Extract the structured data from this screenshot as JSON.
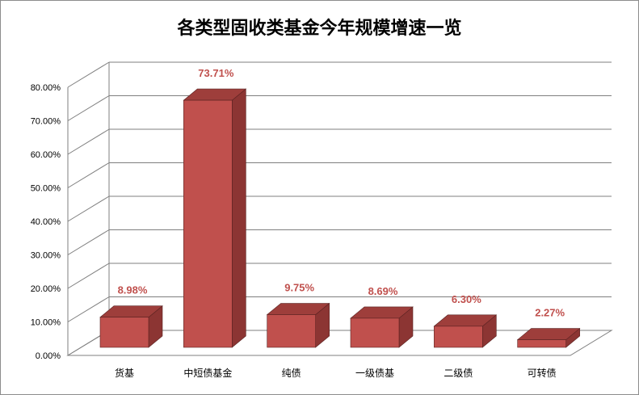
{
  "chart_data": {
    "type": "bar",
    "title": "各类型固收类基金今年规模增速一览",
    "categories": [
      "货基",
      "中短债基金",
      "纯债",
      "一级债基",
      "二级债",
      "可转债"
    ],
    "values": [
      8.98,
      73.71,
      9.75,
      8.69,
      6.3,
      2.27
    ],
    "value_labels": [
      "8.98%",
      "73.71%",
      "9.75%",
      "8.69%",
      "6.30%",
      "2.27%"
    ],
    "ylim": [
      0,
      80
    ],
    "yticks": [
      "0.00%",
      "10.00%",
      "20.00%",
      "30.00%",
      "40.00%",
      "50.00%",
      "60.00%",
      "70.00%",
      "80.00%"
    ],
    "grid": true,
    "legend": "none",
    "style": "3d-column",
    "colors": {
      "bar_front": "#c0504d",
      "bar_side": "#8c3533",
      "bar_top": "#9e3e3b",
      "label": "#c0504d",
      "grid": "#7f7f7f"
    }
  }
}
